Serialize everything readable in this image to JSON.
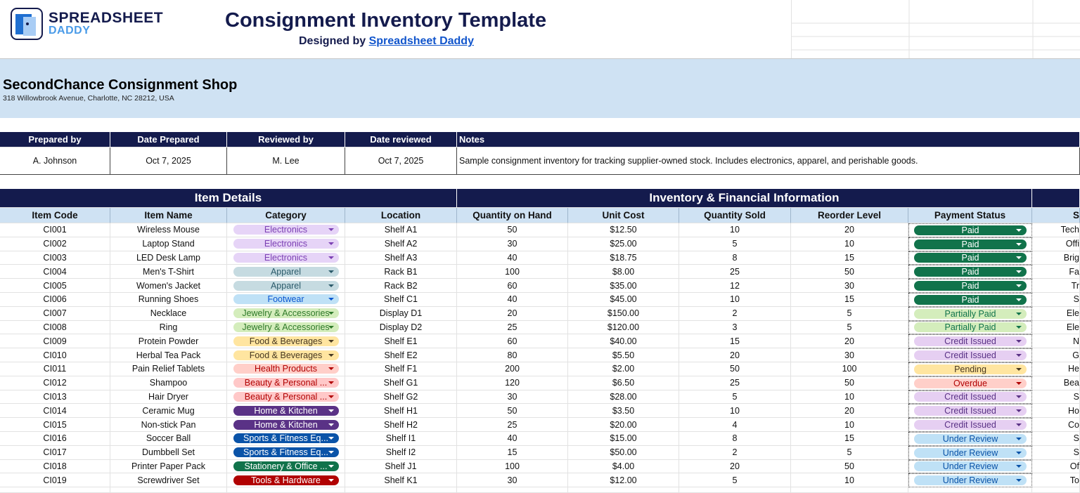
{
  "header": {
    "logo_line1": "SPREADSHEET",
    "logo_line2": "DADDY",
    "title": "Consignment Inventory Template",
    "designed_by": "Designed by",
    "designer": "Spreadsheet Daddy"
  },
  "shop": {
    "name": "SecondChance Consignment Shop",
    "address": "318 Willowbrook Avenue, Charlotte, NC 28212, USA"
  },
  "meta": {
    "headers": [
      "Prepared by",
      "Date Prepared",
      "Reviewed by",
      "Date reviewed",
      "Notes"
    ],
    "values": [
      "A. Johnson",
      "Oct 7, 2025",
      "M. Lee",
      "Oct 7, 2025",
      "Sample consignment inventory for tracking supplier-owned stock. Includes electronics, apparel, and perishable goods."
    ]
  },
  "table": {
    "groups": [
      "Item Details",
      "Inventory & Financial Information"
    ],
    "columns": [
      "Item Code",
      "Item Name",
      "Category",
      "Location",
      "Quantity on Hand",
      "Unit Cost",
      "Quantity Sold",
      "Reorder Level",
      "Payment Status",
      "S"
    ],
    "rows": [
      [
        "CI001",
        "Wireless Mouse",
        "Electronics",
        "Shelf A1",
        "50",
        "$12.50",
        "10",
        "20",
        "Paid",
        "Tech"
      ],
      [
        "CI002",
        "Laptop Stand",
        "Electronics",
        "Shelf A2",
        "30",
        "$25.00",
        "5",
        "10",
        "Paid",
        "Offi"
      ],
      [
        "CI003",
        "LED Desk Lamp",
        "Electronics",
        "Shelf A3",
        "40",
        "$18.75",
        "8",
        "15",
        "Paid",
        "Brig"
      ],
      [
        "CI004",
        "Men's T-Shirt",
        "Apparel",
        "Rack B1",
        "100",
        "$8.00",
        "25",
        "50",
        "Paid",
        "Fa"
      ],
      [
        "CI005",
        "Women's Jacket",
        "Apparel",
        "Rack B2",
        "60",
        "$35.00",
        "12",
        "30",
        "Paid",
        "Tr"
      ],
      [
        "CI006",
        "Running Shoes",
        "Footwear",
        "Shelf C1",
        "40",
        "$45.00",
        "10",
        "15",
        "Paid",
        "S"
      ],
      [
        "CI007",
        "Necklace",
        "Jewelry & Accessories",
        "Display D1",
        "20",
        "$150.00",
        "2",
        "5",
        "Partially Paid",
        "Ele"
      ],
      [
        "CI008",
        "Ring",
        "Jewelry & Accessories",
        "Display D2",
        "25",
        "$120.00",
        "3",
        "5",
        "Partially Paid",
        "Ele"
      ],
      [
        "CI009",
        "Protein Powder",
        "Food & Beverages",
        "Shelf E1",
        "60",
        "$40.00",
        "15",
        "20",
        "Credit Issued",
        "N"
      ],
      [
        "CI010",
        "Herbal Tea Pack",
        "Food & Beverages",
        "Shelf E2",
        "80",
        "$5.50",
        "20",
        "30",
        "Credit Issued",
        "G"
      ],
      [
        "CI011",
        "Pain Relief Tablets",
        "Health Products",
        "Shelf F1",
        "200",
        "$2.00",
        "50",
        "100",
        "Pending",
        "He"
      ],
      [
        "CI012",
        "Shampoo",
        "Beauty & Personal ...",
        "Shelf G1",
        "120",
        "$6.50",
        "25",
        "50",
        "Overdue",
        "Bea"
      ],
      [
        "CI013",
        "Hair Dryer",
        "Beauty & Personal ...",
        "Shelf G2",
        "30",
        "$28.00",
        "5",
        "10",
        "Credit Issued",
        "S"
      ],
      [
        "CI014",
        "Ceramic Mug",
        "Home & Kitchen",
        "Shelf H1",
        "50",
        "$3.50",
        "10",
        "20",
        "Credit Issued",
        "Ho"
      ],
      [
        "CI015",
        "Non-stick Pan",
        "Home & Kitchen",
        "Shelf H2",
        "25",
        "$20.00",
        "4",
        "10",
        "Credit Issued",
        "Co"
      ],
      [
        "CI016",
        "Soccer Ball",
        "Sports & Fitness Eq...",
        "Shelf I1",
        "40",
        "$15.00",
        "8",
        "15",
        "Under Review",
        "S"
      ],
      [
        "CI017",
        "Dumbbell Set",
        "Sports & Fitness Eq...",
        "Shelf I2",
        "15",
        "$50.00",
        "2",
        "5",
        "Under Review",
        "S"
      ],
      [
        "CI018",
        "Printer Paper Pack",
        "Stationery & Office ...",
        "Shelf J1",
        "100",
        "$4.00",
        "20",
        "50",
        "Under Review",
        "Of"
      ],
      [
        "CI019",
        "Screwdriver Set",
        "Tools & Hardware",
        "Shelf K1",
        "30",
        "$12.00",
        "5",
        "10",
        "Under Review",
        "To"
      ]
    ]
  },
  "chip_styles": {
    "Electronics": [
      "#e6d4f7",
      "#7b3fb3"
    ],
    "Apparel": [
      "#c6dbe1",
      "#2a5a6a"
    ],
    "Footwear": [
      "#bfe1f6",
      "#0b57d0"
    ],
    "Jewelry & Accessories": [
      "#d4edbc",
      "#2f7a2a"
    ],
    "Food & Beverages": [
      "#ffe5a0",
      "#473821"
    ],
    "Health Products": [
      "#ffcfc9",
      "#b10202"
    ],
    "Beauty & Personal ...": [
      "#ffc8c8",
      "#b10202"
    ],
    "Home & Kitchen": [
      "#5a3286",
      "#ffffff"
    ],
    "Sports & Fitness Eq...": [
      "#0a53a8",
      "#ffffff"
    ],
    "Stationery & Office ...": [
      "#11734b",
      "#ffffff"
    ],
    "Tools & Hardware": [
      "#b10202",
      "#ffffff"
    ],
    "Paid": [
      "#11734b",
      "#ffffff"
    ],
    "Partially Paid": [
      "#d4edbc",
      "#11734b"
    ],
    "Credit Issued": [
      "#e6cff2",
      "#5a3286"
    ],
    "Pending": [
      "#ffe5a0",
      "#473821"
    ],
    "Overdue": [
      "#ffcfc9",
      "#b10202"
    ],
    "Under Review": [
      "#bfe1f6",
      "#0a53a8"
    ]
  }
}
